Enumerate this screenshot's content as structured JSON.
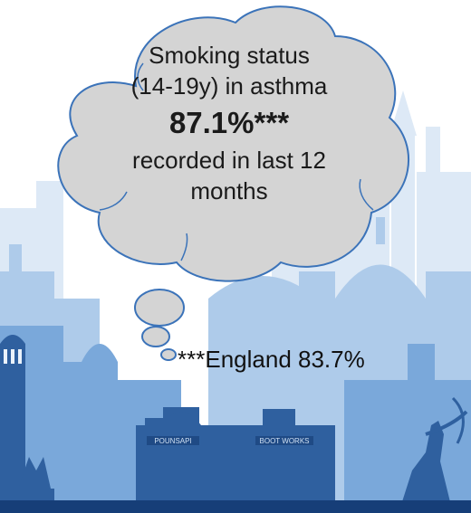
{
  "bubble": {
    "line1": "Smoking status",
    "line2": "(14-19y) in asthma",
    "value": "87.1%***",
    "line3": "recorded in last 12",
    "line4": "months"
  },
  "footnote": "***England 83.7%",
  "signs": {
    "left": "POUNSAPI",
    "right": "BOOT WORKS"
  },
  "colors": {
    "bubble_fill": "#d4d4d4",
    "bubble_stroke": "#3b73b9",
    "skyline_light": "#d6e6f5",
    "skyline_mid": "#a9c9ea",
    "skyline_dark": "#6c9fd4",
    "silhouette": "#2f5f9e",
    "ground": "#173f7a"
  }
}
